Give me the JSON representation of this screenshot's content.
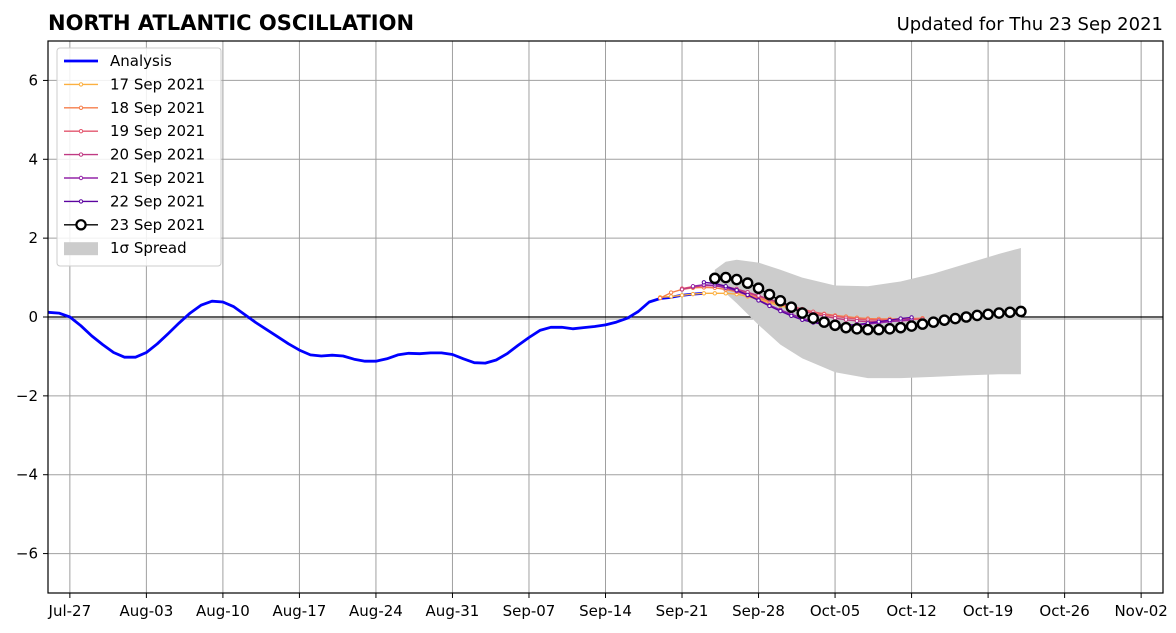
{
  "chart_data": {
    "type": "line",
    "title": "NORTH ATLANTIC OSCILLATION",
    "subtitle": "Updated for Thu 23 Sep 2021",
    "ylim": [
      -7,
      7
    ],
    "yticks": [
      -6,
      -4,
      -2,
      0,
      2,
      4,
      6
    ],
    "ytick_labels": [
      "−6",
      "−4",
      "−2",
      "0",
      "2",
      "4",
      "6"
    ],
    "xlim": [
      "2021-07-25",
      "2021-11-04"
    ],
    "xticks": [
      "2021-07-27",
      "2021-08-03",
      "2021-08-10",
      "2021-08-17",
      "2021-08-24",
      "2021-08-31",
      "2021-09-07",
      "2021-09-14",
      "2021-09-21",
      "2021-09-28",
      "2021-10-05",
      "2021-10-12",
      "2021-10-19",
      "2021-10-26",
      "2021-11-02"
    ],
    "xtick_labels": [
      "Jul-27",
      "Aug-03",
      "Aug-10",
      "Aug-17",
      "Aug-24",
      "Aug-31",
      "Sep-07",
      "Sep-14",
      "Sep-21",
      "Sep-28",
      "Oct-05",
      "Oct-12",
      "Oct-19",
      "Oct-26",
      "Nov-02"
    ],
    "grid": true,
    "legend_position": "top-left",
    "legend_spread_label": "1σ Spread",
    "analysis": {
      "name": "Analysis",
      "color": "#0000ff",
      "dates": [
        "2021-07-25",
        "2021-07-26",
        "2021-07-27",
        "2021-07-28",
        "2021-07-29",
        "2021-07-30",
        "2021-07-31",
        "2021-08-01",
        "2021-08-02",
        "2021-08-03",
        "2021-08-04",
        "2021-08-05",
        "2021-08-06",
        "2021-08-07",
        "2021-08-08",
        "2021-08-09",
        "2021-08-10",
        "2021-08-11",
        "2021-08-12",
        "2021-08-13",
        "2021-08-14",
        "2021-08-15",
        "2021-08-16",
        "2021-08-17",
        "2021-08-18",
        "2021-08-19",
        "2021-08-20",
        "2021-08-21",
        "2021-08-22",
        "2021-08-23",
        "2021-08-24",
        "2021-08-25",
        "2021-08-26",
        "2021-08-27",
        "2021-08-28",
        "2021-08-29",
        "2021-08-30",
        "2021-08-31",
        "2021-09-01",
        "2021-09-02",
        "2021-09-03",
        "2021-09-04",
        "2021-09-05",
        "2021-09-06",
        "2021-09-07",
        "2021-09-08",
        "2021-09-09",
        "2021-09-10",
        "2021-09-11",
        "2021-09-12",
        "2021-09-13",
        "2021-09-14",
        "2021-09-15",
        "2021-09-16",
        "2021-09-17",
        "2021-09-18",
        "2021-09-19",
        "2021-09-20",
        "2021-09-21",
        "2021-09-22",
        "2021-09-23"
      ],
      "values": [
        0.12,
        0.1,
        0.0,
        -0.22,
        -0.48,
        -0.7,
        -0.9,
        -1.02,
        -1.02,
        -0.9,
        -0.68,
        -0.42,
        -0.15,
        0.1,
        0.3,
        0.4,
        0.38,
        0.26,
        0.06,
        -0.14,
        -0.32,
        -0.5,
        -0.68,
        -0.84,
        -0.96,
        -0.99,
        -0.97,
        -0.99,
        -1.07,
        -1.12,
        -1.12,
        -1.06,
        -0.96,
        -0.92,
        -0.93,
        -0.91,
        -0.91,
        -0.95,
        -1.06,
        -1.16,
        -1.17,
        -1.09,
        -0.93,
        -0.72,
        -0.52,
        -0.34,
        -0.26,
        -0.26,
        -0.3,
        -0.27,
        -0.24,
        -0.2,
        -0.13,
        -0.03,
        0.14,
        0.38,
        0.47,
        0.5,
        0.55,
        0.58,
        0.6
      ]
    },
    "forecasts": [
      {
        "name": "17 Sep 2021",
        "color": "#fcb040",
        "start": "2021-09-19",
        "values": [
          0.5,
          0.52,
          0.55,
          0.58,
          0.6,
          0.6,
          0.6,
          0.58,
          0.52,
          0.44,
          0.36,
          0.28,
          0.22,
          0.16,
          0.1,
          0.05,
          0.02,
          -0.01,
          -0.02
        ]
      },
      {
        "name": "18 Sep 2021",
        "color": "#f67e4b",
        "start": "2021-09-19",
        "values": [
          0.48,
          0.62,
          0.7,
          0.74,
          0.75,
          0.74,
          0.7,
          0.64,
          0.56,
          0.48,
          0.4,
          0.32,
          0.25,
          0.19,
          0.13,
          0.08,
          0.04,
          0.01,
          -0.02,
          -0.04,
          -0.05,
          -0.05,
          -0.05,
          -0.04,
          -0.03
        ]
      },
      {
        "name": "19 Sep 2021",
        "color": "#e3566e",
        "start": "2021-09-21",
        "values": [
          0.72,
          0.77,
          0.8,
          0.79,
          0.75,
          0.68,
          0.6,
          0.52,
          0.44,
          0.36,
          0.28,
          0.2,
          0.13,
          0.07,
          0.02,
          -0.02,
          -0.05,
          -0.07,
          -0.08,
          -0.08,
          -0.07,
          -0.06,
          -0.05
        ]
      },
      {
        "name": "20 Sep 2021",
        "color": "#c03a83",
        "start": "2021-09-21",
        "values": [
          0.7,
          0.76,
          0.8,
          0.8,
          0.77,
          0.71,
          0.63,
          0.54,
          0.45,
          0.35,
          0.25,
          0.16,
          0.08,
          0.02,
          -0.03,
          -0.07,
          -0.1,
          -0.12,
          -0.12,
          -0.11,
          -0.1,
          -0.08
        ]
      },
      {
        "name": "21 Sep 2021",
        "color": "#9425a8",
        "start": "2021-09-22",
        "values": [
          0.78,
          0.82,
          0.8,
          0.74,
          0.66,
          0.55,
          0.43,
          0.3,
          0.18,
          0.07,
          -0.03,
          -0.11,
          -0.17,
          -0.2,
          -0.21,
          -0.2,
          -0.18,
          -0.15,
          -0.12,
          -0.09,
          -0.06
        ]
      },
      {
        "name": "22 Sep 2021",
        "color": "#5c04a0",
        "start": "2021-09-23",
        "values": [
          0.88,
          0.85,
          0.78,
          0.68,
          0.56,
          0.42,
          0.28,
          0.15,
          0.03,
          -0.07,
          -0.14,
          -0.19,
          -0.21,
          -0.21,
          -0.19,
          -0.16,
          -0.12,
          -0.08,
          -0.04,
          -0.01
        ]
      },
      {
        "name": "23 Sep 2021",
        "color": "#000000",
        "start": "2021-09-24",
        "values": [
          0.98,
          1.0,
          0.95,
          0.86,
          0.73,
          0.57,
          0.41,
          0.25,
          0.1,
          -0.03,
          -0.13,
          -0.21,
          -0.27,
          -0.3,
          -0.32,
          -0.32,
          -0.3,
          -0.27,
          -0.23,
          -0.18,
          -0.13,
          -0.08,
          -0.04,
          0.0,
          0.04,
          0.07,
          0.1,
          0.12,
          0.14
        ]
      }
    ],
    "spread": {
      "name": "1σ Spread",
      "color": "#cccccc",
      "dates": [
        "2021-09-24",
        "2021-09-25",
        "2021-09-26",
        "2021-09-28",
        "2021-09-30",
        "2021-10-02",
        "2021-10-05",
        "2021-10-08",
        "2021-10-11",
        "2021-10-14",
        "2021-10-17",
        "2021-10-20",
        "2021-10-22"
      ],
      "upper": [
        1.2,
        1.4,
        1.45,
        1.38,
        1.2,
        1.0,
        0.8,
        0.78,
        0.9,
        1.1,
        1.35,
        1.6,
        1.75
      ],
      "lower": [
        0.9,
        0.6,
        0.35,
        -0.2,
        -0.7,
        -1.05,
        -1.4,
        -1.55,
        -1.55,
        -1.52,
        -1.48,
        -1.45,
        -1.45
      ]
    }
  }
}
